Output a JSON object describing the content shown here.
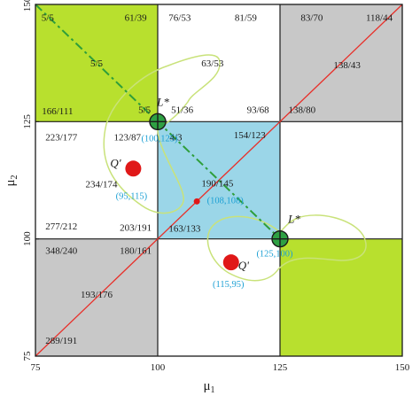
{
  "axes": {
    "x_label_main": "μ",
    "x_label_sub": "1",
    "y_label_main": "μ",
    "y_label_sub": "2",
    "x_ticks": [
      "75",
      "100",
      "125",
      "150"
    ],
    "y_ticks": [
      "75",
      "100",
      "125",
      "150"
    ]
  },
  "colors": {
    "green_region": "#b8e02e",
    "gray_region": "#c8c8c8",
    "blue_region": "#9bd6e8",
    "diagonal": "#e8302a",
    "dashed_line": "#2e9e3a",
    "boundary_curve": "#c9e27a",
    "coord_text": "#1ca0d4",
    "marker_fill": "#e01818"
  },
  "chart_data": {
    "type": "diagram",
    "xlim": [
      75,
      150
    ],
    "ylim": [
      75,
      150
    ],
    "ticks": [
      75,
      100,
      125,
      150
    ],
    "regions": [
      {
        "x": [
          75,
          100
        ],
        "y": [
          125,
          150
        ],
        "fill": "green"
      },
      {
        "x": [
          125,
          150
        ],
        "y": [
          75,
          100
        ],
        "fill": "green"
      },
      {
        "x": [
          125,
          150
        ],
        "y": [
          125,
          150
        ],
        "fill": "gray"
      },
      {
        "x": [
          75,
          100
        ],
        "y": [
          75,
          100
        ],
        "fill": "gray"
      },
      {
        "x": [
          100,
          125
        ],
        "y": [
          100,
          125
        ],
        "fill": "blue"
      }
    ],
    "diagonal": {
      "from": [
        75,
        75
      ],
      "to": [
        150,
        150
      ]
    },
    "dashed_line": {
      "from": [
        75,
        150
      ],
      "to": [
        125,
        100
      ]
    },
    "ratio_labels": [
      {
        "text": "5/5",
        "x": 77.5,
        "y": 147.3
      },
      {
        "text": "61/39",
        "x": 95.5,
        "y": 147.3
      },
      {
        "text": "76/53",
        "x": 104.5,
        "y": 147.3
      },
      {
        "text": "81/59",
        "x": 118.0,
        "y": 147.3
      },
      {
        "text": "83/70",
        "x": 131.5,
        "y": 147.3
      },
      {
        "text": "118/44",
        "x": 145.3,
        "y": 147.3
      },
      {
        "text": "5/5",
        "x": 87.5,
        "y": 137.5
      },
      {
        "text": "63/53",
        "x": 111.2,
        "y": 137.5
      },
      {
        "text": "138/43",
        "x": 138.7,
        "y": 137.2
      },
      {
        "text": "5/5",
        "x": 97.3,
        "y": 127.6
      },
      {
        "text": "51/36",
        "x": 105.0,
        "y": 127.6
      },
      {
        "text": "93/68",
        "x": 120.5,
        "y": 127.6
      },
      {
        "text": "138/80",
        "x": 129.5,
        "y": 127.6
      },
      {
        "text": "166/111",
        "x": 79.5,
        "y": 127.3
      },
      {
        "text": "4/3",
        "x": 103.7,
        "y": 121.8
      },
      {
        "text": "223/177",
        "x": 80.3,
        "y": 121.8
      },
      {
        "text": "123/87",
        "x": 93.8,
        "y": 121.8
      },
      {
        "text": "154/123",
        "x": 118.8,
        "y": 122.2
      },
      {
        "text": "234/174",
        "x": 88.5,
        "y": 111.7
      },
      {
        "text": "190/145",
        "x": 112.2,
        "y": 111.9
      },
      {
        "text": "277/212",
        "x": 80.3,
        "y": 102.8
      },
      {
        "text": "203/191",
        "x": 95.5,
        "y": 102.5
      },
      {
        "text": "163/133",
        "x": 105.5,
        "y": 102.3
      },
      {
        "text": "348/240",
        "x": 80.3,
        "y": 97.6
      },
      {
        "text": "180/161",
        "x": 95.5,
        "y": 97.6
      },
      {
        "text": "193/176",
        "x": 87.5,
        "y": 88.2
      },
      {
        "text": "289/191",
        "x": 80.3,
        "y": 78.4
      }
    ],
    "points": [
      {
        "label": "L*",
        "x": 100,
        "y": 125,
        "coord": "(100,125)",
        "marker": "equilibrium"
      },
      {
        "label": "L*",
        "x": 125,
        "y": 100,
        "coord": "(125,100)",
        "marker": "equilibrium"
      },
      {
        "label": "Q'",
        "x": 95,
        "y": 115,
        "coord": "(95,115)",
        "marker": "red"
      },
      {
        "label": "Q'",
        "x": 115,
        "y": 95,
        "coord": "(115,95)",
        "marker": "red"
      },
      {
        "label": "",
        "x": 108,
        "y": 108,
        "coord": "(108,108)",
        "marker": "small-red"
      }
    ]
  }
}
